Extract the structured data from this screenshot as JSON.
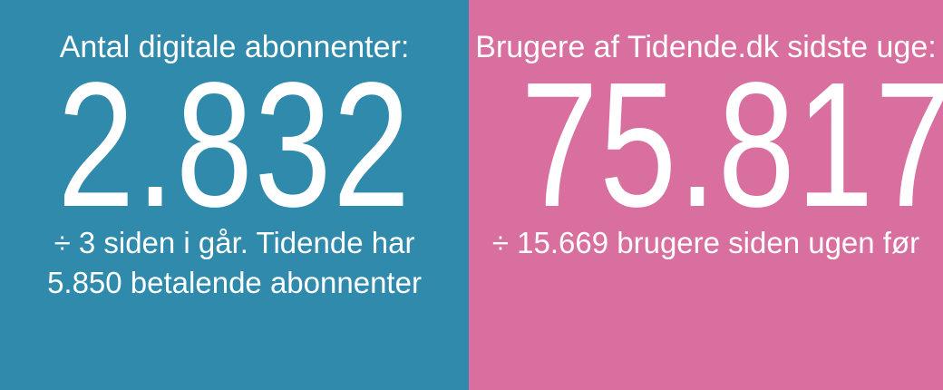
{
  "left_panel": {
    "heading": "Antal digitale abonnenter:",
    "number": "2.832",
    "note_line1": "÷ 3 siden i går. Tidende har",
    "note_line2": "5.850 betalende abonnenter",
    "background": "#2f8aac"
  },
  "right_panel": {
    "heading": "Brugere af Tidende.dk sidste uge:",
    "number": "75.817",
    "note_line1": "÷ 15.669 brugere siden ugen før",
    "background": "#d86f9e"
  }
}
